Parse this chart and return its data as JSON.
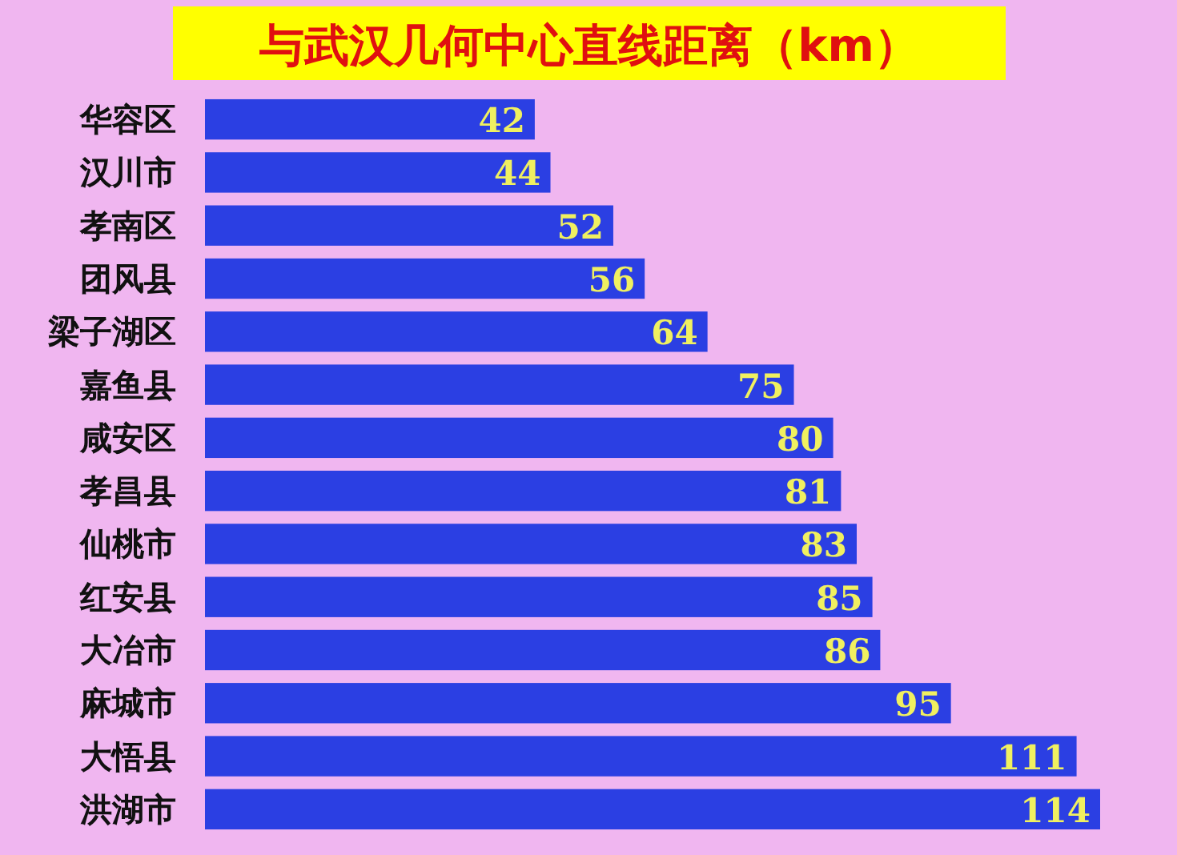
{
  "chart_data": {
    "type": "bar",
    "orientation": "horizontal",
    "title": "与武汉几何中心直线距离（km）",
    "categories": [
      "华容区",
      "汉川市",
      "孝南区",
      "团风县",
      "梁子湖区",
      "嘉鱼县",
      "咸安区",
      "孝昌县",
      "仙桃市",
      "红安县",
      "大冶市",
      "麻城市",
      "大悟县",
      "洪湖市"
    ],
    "values": [
      42,
      44,
      52,
      56,
      64,
      75,
      80,
      81,
      83,
      85,
      86,
      95,
      111,
      114
    ],
    "color": "#2b3fe3",
    "data_labels": true
  }
}
